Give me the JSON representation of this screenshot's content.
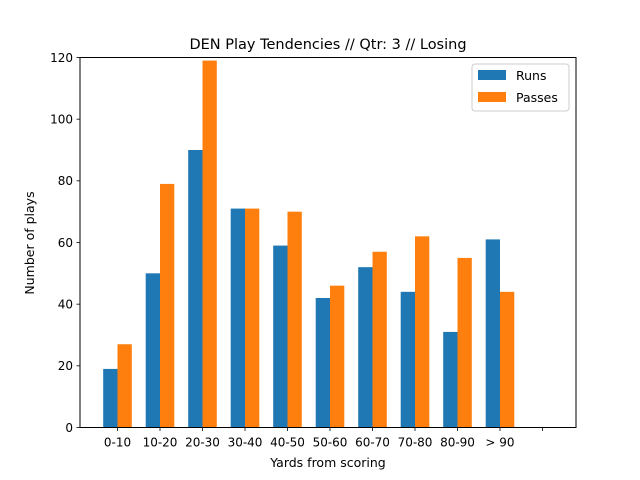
{
  "chart_data": {
    "type": "bar",
    "title": "DEN Play Tendencies // Qtr: 3 // Losing",
    "xlabel": "Yards from scoring",
    "ylabel": "Number of plays",
    "categories": [
      "0-10",
      "10-20",
      "20-30",
      "30-40",
      "40-50",
      "50-60",
      "60-70",
      "70-80",
      "80-90",
      "> 90"
    ],
    "extra_tick_label": "",
    "series": [
      {
        "name": "Runs",
        "color": "#1f77b4",
        "values": [
          19,
          50,
          90,
          71,
          59,
          42,
          52,
          44,
          31,
          61
        ]
      },
      {
        "name": "Passes",
        "color": "#ff7f0e",
        "values": [
          27,
          79,
          119,
          71,
          70,
          46,
          57,
          62,
          55,
          44
        ]
      }
    ],
    "ylim": [
      0,
      120
    ],
    "yticks": [
      0,
      20,
      40,
      60,
      80,
      100,
      120
    ],
    "legend_position": "top-right",
    "grid": false
  }
}
